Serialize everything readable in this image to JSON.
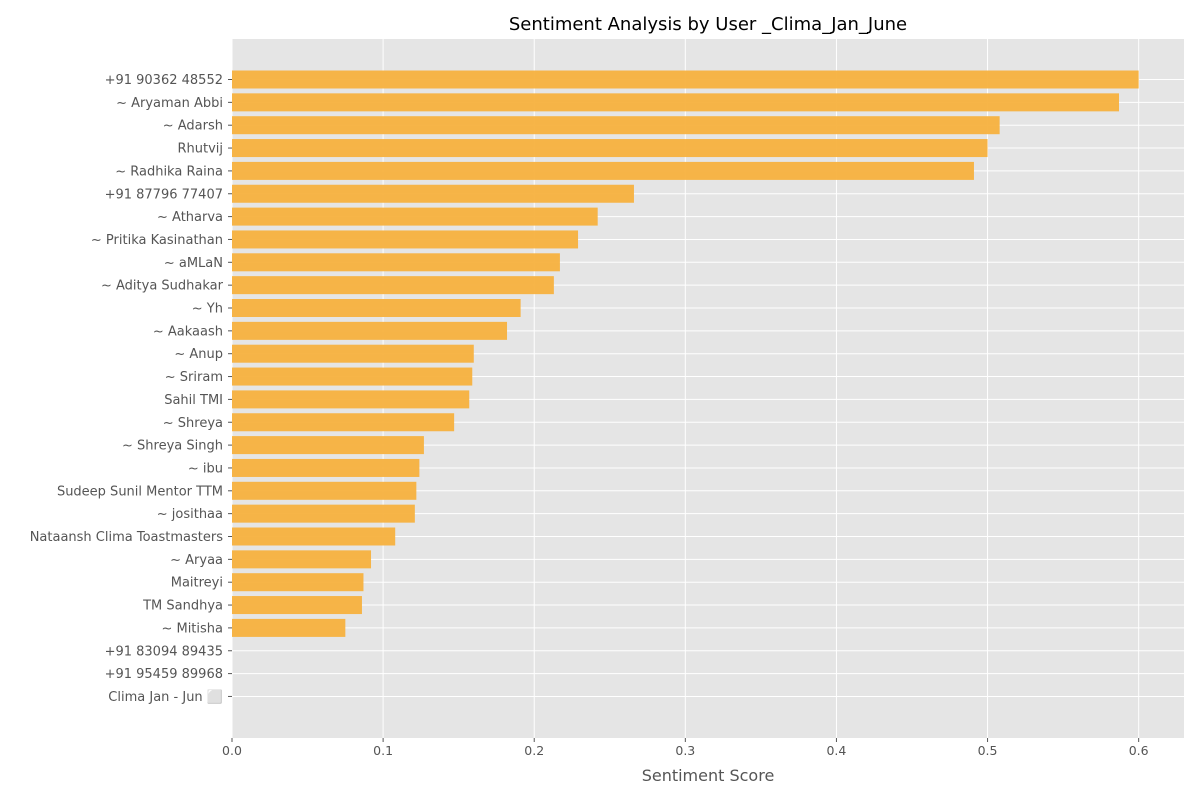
{
  "colors": {
    "plot_background": "#e5e5e5",
    "grid": "#ffffff",
    "bar": "#f7b13e",
    "tick": "#555555",
    "title": "#000000"
  },
  "chart_data": {
    "type": "bar",
    "orientation": "horizontal",
    "title": "Sentiment Analysis by User _Clima_Jan_June",
    "xlabel": "Sentiment Score",
    "ylabel": "",
    "xlim": [
      0,
      0.63
    ],
    "x_ticks": [
      0.0,
      0.1,
      0.2,
      0.3,
      0.4,
      0.5,
      0.6
    ],
    "x_tick_labels": [
      "0.0",
      "0.1",
      "0.2",
      "0.3",
      "0.4",
      "0.5",
      "0.6"
    ],
    "grid": true,
    "categories": [
      "+91 90362 48552",
      "~ Aryaman Abbi",
      "~ Adarsh",
      "Rhutvij",
      "~ Radhika Raina",
      "+91 87796 77407",
      "~ Atharva",
      "~ Pritika Kasinathan",
      "~ aMLaN",
      "~ Aditya Sudhakar",
      "~ Yh",
      "~ Aakaash",
      "~ Anup",
      "~ Sriram",
      "Sahil TMI",
      "~ Shreya",
      "~ Shreya Singh",
      "~ ibu",
      "Sudeep Sunil Mentor TTM",
      "~ josithaa",
      "Nataansh Clima Toastmasters",
      "~ Aryaa",
      "Maitreyi",
      "TM Sandhya",
      "~ Mitisha",
      "+91 83094 89435",
      "+91 95459 89968",
      "Clima Jan - Jun ⬜"
    ],
    "values": [
      0.6,
      0.587,
      0.508,
      0.5,
      0.491,
      0.266,
      0.242,
      0.229,
      0.217,
      0.213,
      0.191,
      0.182,
      0.16,
      0.159,
      0.157,
      0.147,
      0.127,
      0.124,
      0.122,
      0.121,
      0.108,
      0.092,
      0.087,
      0.086,
      0.075,
      0.0,
      0.0,
      0.0
    ]
  }
}
